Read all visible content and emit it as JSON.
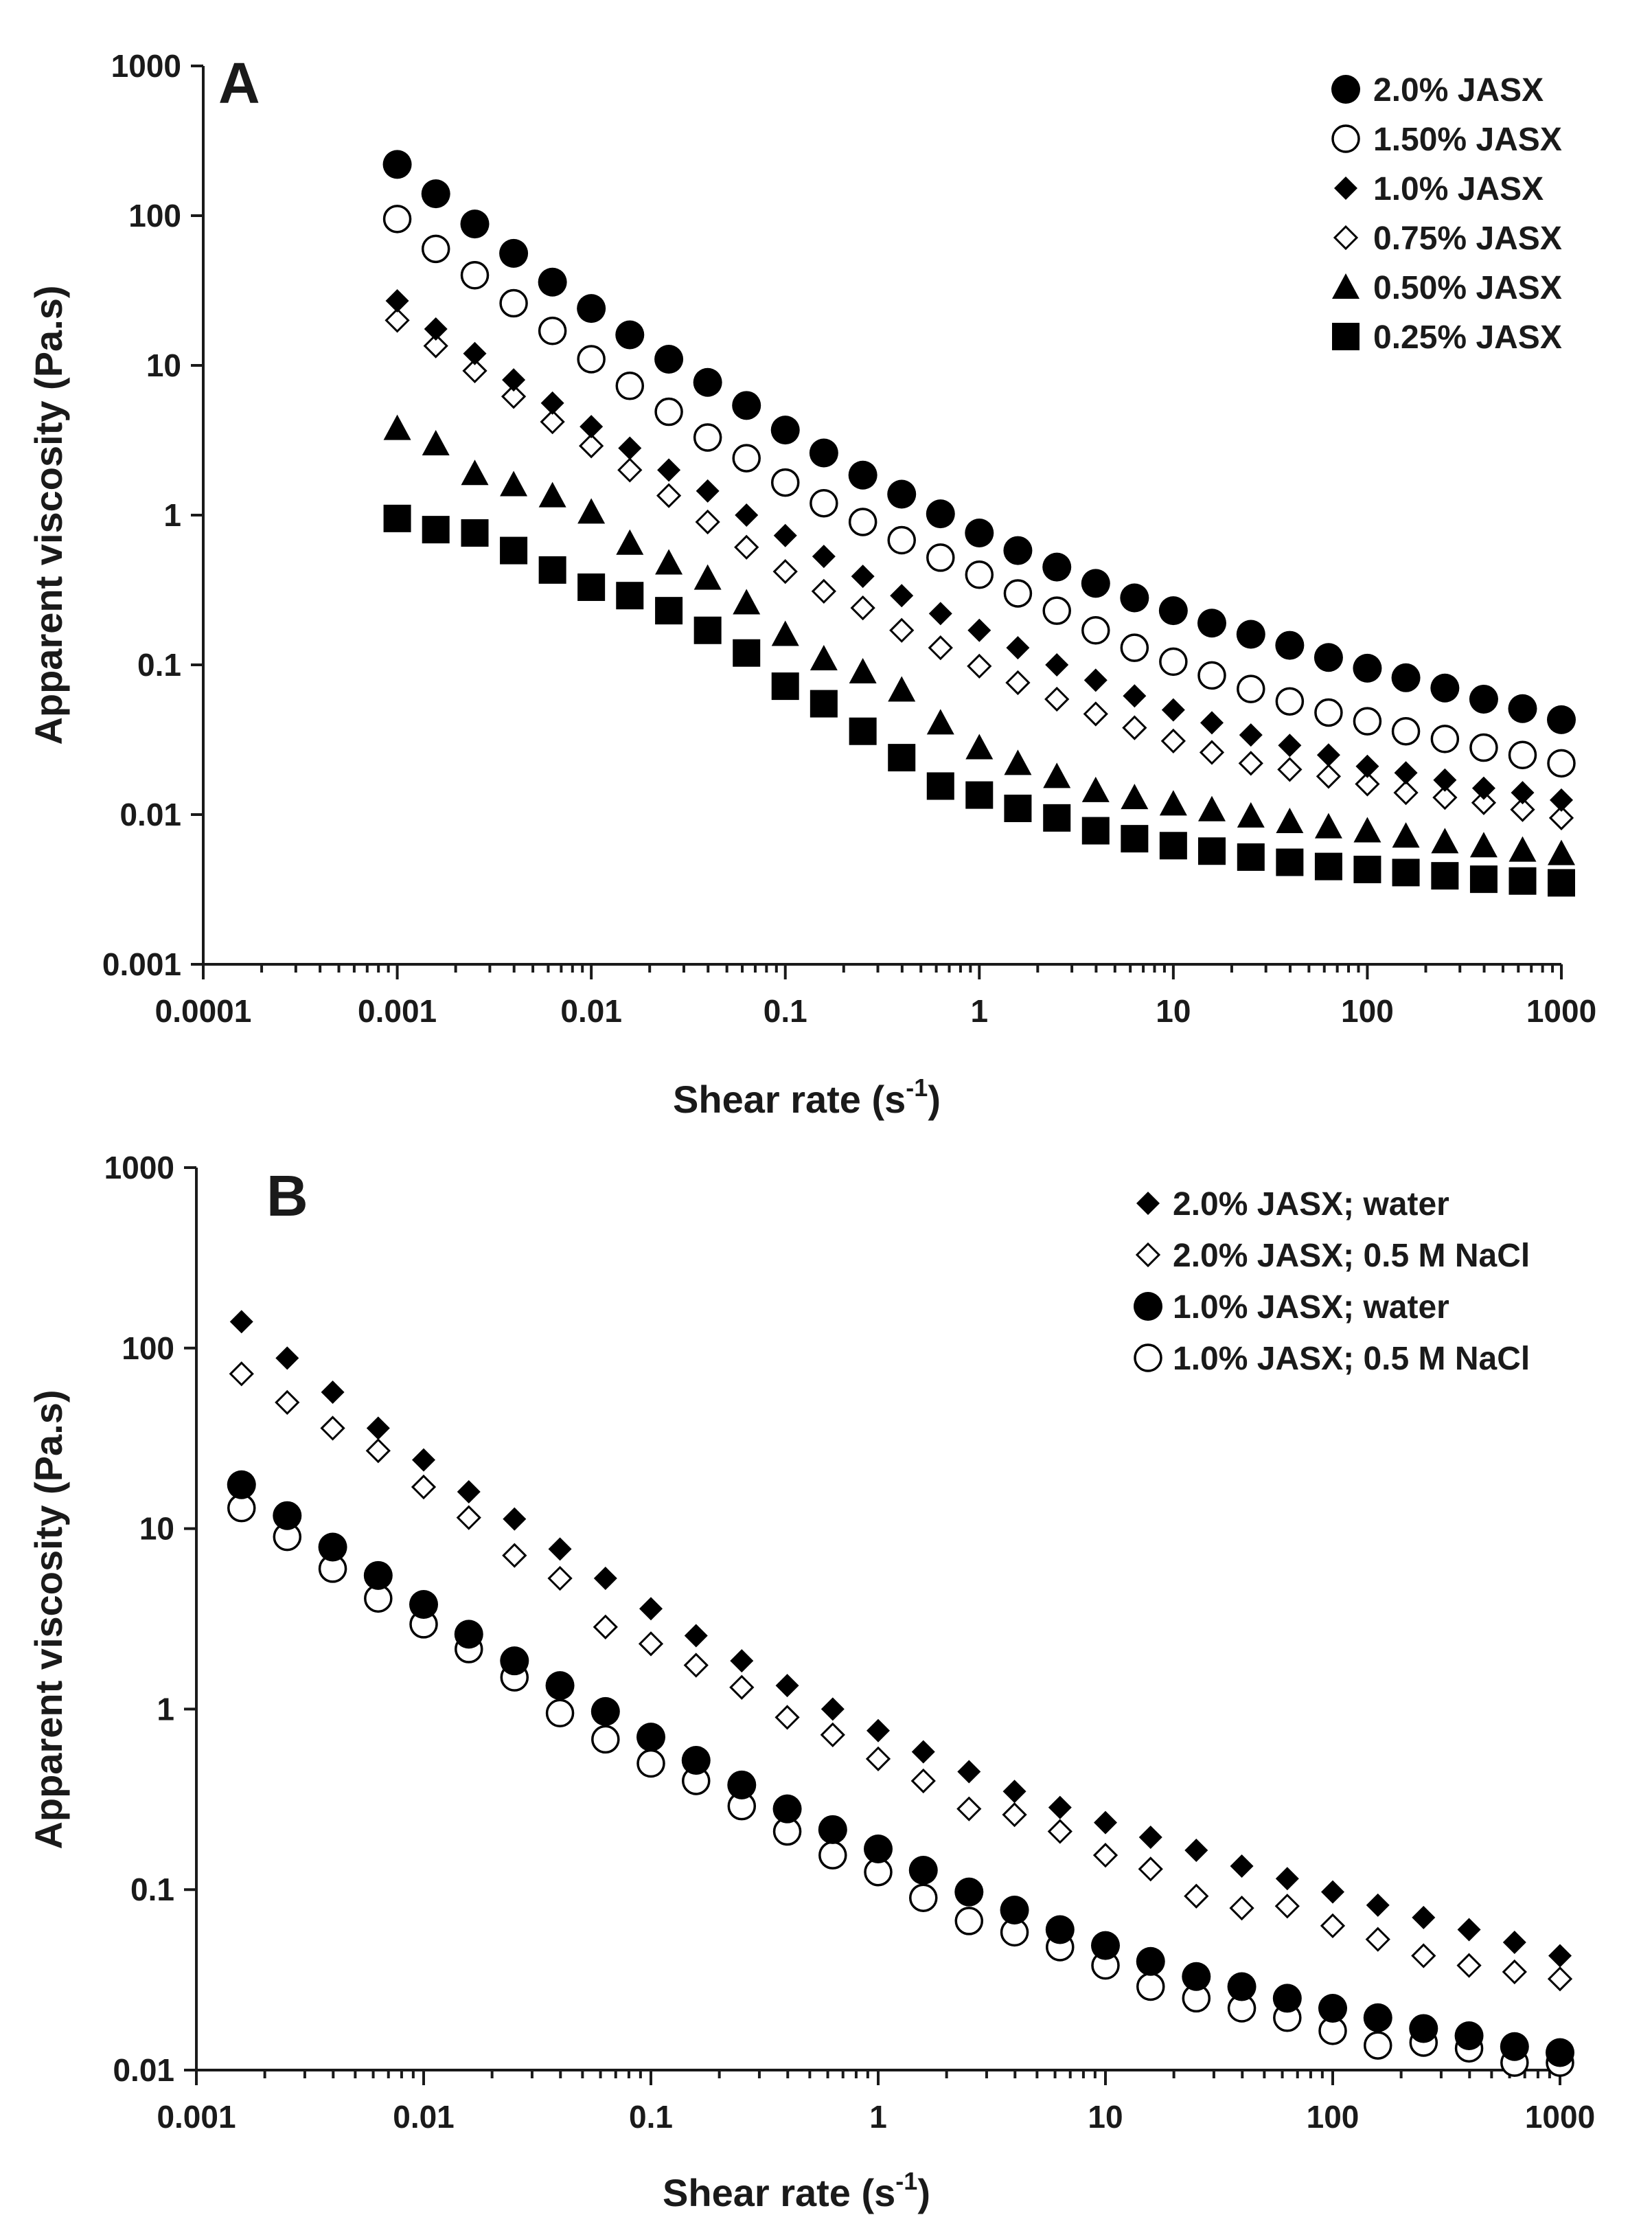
{
  "chart_data": [
    {
      "type": "scatter",
      "panel_label": "A",
      "xlabel": "Shear rate (s",
      "xlabel_sup": "-1",
      "xlabel_end": ")",
      "ylabel": "Apparent viscosity  (Pa.s)",
      "xscale": "log",
      "yscale": "log",
      "xlim": [
        0.0001,
        1000
      ],
      "ylim": [
        0.001,
        1000
      ],
      "xticks": [
        "0.0001",
        "0.001",
        "0.01",
        "0.1",
        "1",
        "10",
        "100",
        "1000"
      ],
      "yticks": [
        "0.001",
        "0.01",
        "0.1",
        "1",
        "10",
        "100",
        "1000"
      ],
      "grid": false,
      "legend_position": "top-right",
      "x": [
        0.001,
        0.00158,
        0.00251,
        0.00398,
        0.00631,
        0.01,
        0.0158,
        0.0251,
        0.0398,
        0.0631,
        0.1,
        0.158,
        0.251,
        0.398,
        0.631,
        1,
        1.58,
        2.51,
        3.98,
        6.31,
        10,
        15.8,
        25.1,
        39.8,
        63.1,
        100,
        158,
        251,
        398,
        631,
        1000
      ],
      "series": [
        {
          "name": "2.0% JASX",
          "marker": "filled-circle",
          "values": [
            220,
            140,
            88,
            56,
            36,
            24,
            16,
            11,
            7.7,
            5.4,
            3.7,
            2.6,
            1.85,
            1.38,
            1.02,
            0.76,
            0.58,
            0.45,
            0.35,
            0.28,
            0.23,
            0.19,
            0.16,
            0.135,
            0.112,
            0.095,
            0.082,
            0.07,
            0.059,
            0.051,
            0.043
          ]
        },
        {
          "name": "1.50% JASX",
          "marker": "open-circle",
          "values": [
            95,
            60,
            40,
            26,
            17,
            11,
            7.3,
            4.9,
            3.3,
            2.4,
            1.65,
            1.2,
            0.9,
            0.68,
            0.52,
            0.4,
            0.3,
            0.23,
            0.17,
            0.13,
            0.105,
            0.085,
            0.069,
            0.057,
            0.048,
            0.042,
            0.036,
            0.032,
            0.028,
            0.025,
            0.022
          ]
        },
        {
          "name": "1.0% JASX",
          "marker": "filled-diamond",
          "values": [
            27,
            17.5,
            12,
            8,
            5.6,
            3.9,
            2.8,
            2.0,
            1.45,
            1.0,
            0.73,
            0.53,
            0.39,
            0.29,
            0.22,
            0.17,
            0.13,
            0.1,
            0.079,
            0.062,
            0.05,
            0.041,
            0.034,
            0.029,
            0.025,
            0.021,
            0.019,
            0.017,
            0.015,
            0.014,
            0.0125
          ]
        },
        {
          "name": "0.75% JASX",
          "marker": "open-diamond",
          "values": [
            20,
            13.5,
            9.2,
            6.2,
            4.2,
            2.9,
            2.0,
            1.35,
            0.9,
            0.61,
            0.42,
            0.31,
            0.24,
            0.17,
            0.13,
            0.098,
            0.076,
            0.059,
            0.047,
            0.038,
            0.031,
            0.026,
            0.022,
            0.02,
            0.018,
            0.016,
            0.014,
            0.013,
            0.012,
            0.0108,
            0.0095
          ]
        },
        {
          "name": "0.50% JASX",
          "marker": "filled-triangle",
          "values": [
            3.8,
            3.0,
            1.9,
            1.6,
            1.35,
            1.05,
            0.65,
            0.48,
            0.38,
            0.26,
            0.16,
            0.11,
            0.09,
            0.068,
            0.041,
            0.028,
            0.022,
            0.018,
            0.0145,
            0.013,
            0.0118,
            0.0108,
            0.0098,
            0.009,
            0.0083,
            0.0078,
            0.0072,
            0.0066,
            0.0062,
            0.0058,
            0.0055
          ]
        },
        {
          "name": "0.25% JASX",
          "marker": "filled-square",
          "values": [
            0.95,
            0.8,
            0.76,
            0.58,
            0.43,
            0.33,
            0.29,
            0.23,
            0.17,
            0.12,
            0.072,
            0.055,
            0.036,
            0.024,
            0.0155,
            0.0135,
            0.011,
            0.0095,
            0.0078,
            0.0069,
            0.0062,
            0.0057,
            0.0052,
            0.0048,
            0.0045,
            0.0043,
            0.0041,
            0.0039,
            0.0037,
            0.0036,
            0.0035
          ]
        }
      ]
    },
    {
      "type": "scatter",
      "panel_label": "B",
      "xlabel": "Shear rate (s",
      "xlabel_sup": "-1",
      "xlabel_end": ")",
      "ylabel": "Apparent viscosity  (Pa.s)",
      "xscale": "log",
      "yscale": "log",
      "xlim": [
        0.001,
        1000
      ],
      "ylim": [
        0.01,
        1000
      ],
      "xticks": [
        "0.001",
        "0.01",
        "0.1",
        "1",
        "10",
        "100",
        "1000"
      ],
      "yticks": [
        "0.01",
        "0.1",
        "1",
        "10",
        "100",
        "1000"
      ],
      "grid": false,
      "legend_position": "top-right",
      "x": [
        0.00158,
        0.00251,
        0.00398,
        0.00631,
        0.01,
        0.0158,
        0.0251,
        0.0398,
        0.0631,
        0.1,
        0.158,
        0.251,
        0.398,
        0.631,
        1,
        1.58,
        2.51,
        3.98,
        6.31,
        10,
        15.8,
        25.1,
        39.8,
        63.1,
        100,
        158,
        251,
        398,
        631,
        1000
      ],
      "series": [
        {
          "name": "2.0% JASX; water",
          "marker": "filled-diamond",
          "values": [
            140,
            88,
            57,
            36,
            24,
            16,
            11.3,
            7.7,
            5.3,
            3.6,
            2.55,
            1.85,
            1.35,
            1.0,
            0.76,
            0.58,
            0.45,
            0.35,
            0.285,
            0.235,
            0.195,
            0.165,
            0.135,
            0.115,
            0.097,
            0.082,
            0.07,
            0.06,
            0.051,
            0.043
          ]
        },
        {
          "name": "2.0% JASX; 0.5 M NaCl",
          "marker": "open-diamond",
          "values": [
            72,
            50,
            36,
            27,
            17,
            11.5,
            7.1,
            5.3,
            2.85,
            2.3,
            1.75,
            1.32,
            0.9,
            0.72,
            0.53,
            0.4,
            0.28,
            0.26,
            0.21,
            0.155,
            0.13,
            0.092,
            0.079,
            0.081,
            0.063,
            0.053,
            0.043,
            0.038,
            0.035,
            0.032
          ]
        },
        {
          "name": "1.0% JASX; water",
          "marker": "filled-circle",
          "values": [
            17.5,
            11.8,
            7.9,
            5.5,
            3.8,
            2.6,
            1.85,
            1.35,
            0.97,
            0.7,
            0.52,
            0.38,
            0.28,
            0.215,
            0.168,
            0.128,
            0.097,
            0.077,
            0.06,
            0.049,
            0.04,
            0.033,
            0.029,
            0.025,
            0.022,
            0.0195,
            0.017,
            0.0155,
            0.0135,
            0.0125
          ]
        },
        {
          "name": "1.0% JASX; 0.5 M NaCl",
          "marker": "open-circle",
          "values": [
            13,
            9,
            6,
            4.1,
            2.95,
            2.15,
            1.5,
            0.95,
            0.68,
            0.5,
            0.4,
            0.29,
            0.21,
            0.155,
            0.125,
            0.09,
            0.067,
            0.058,
            0.048,
            0.038,
            0.029,
            0.025,
            0.022,
            0.0195,
            0.0165,
            0.0137,
            0.0142,
            0.0132,
            0.011,
            0.011
          ]
        }
      ]
    }
  ]
}
